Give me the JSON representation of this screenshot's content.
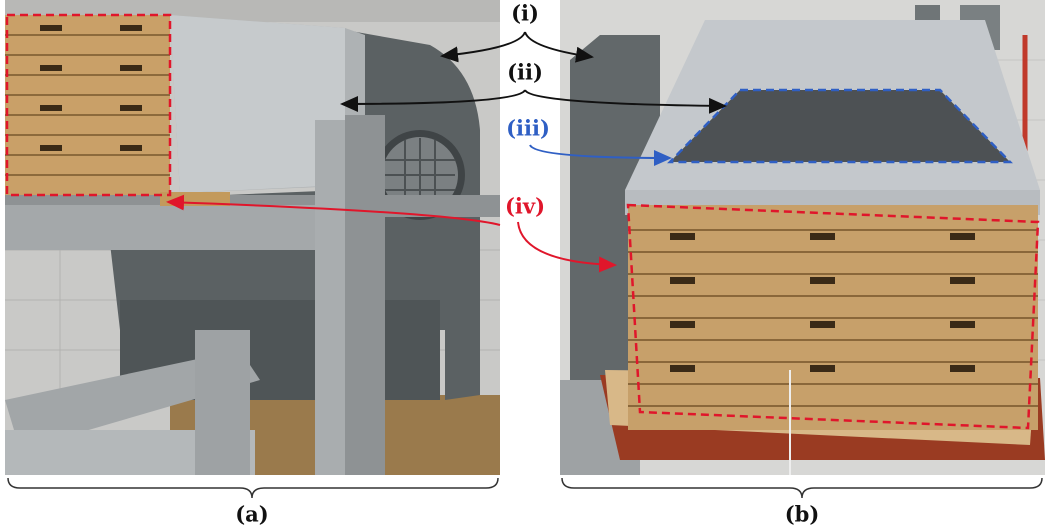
{
  "callouts": [
    "(i)",
    "(ii)",
    "(iii)",
    "(iv)"
  ],
  "panels": [
    {
      "label": "(a)"
    },
    {
      "label": "(b)"
    }
  ]
}
